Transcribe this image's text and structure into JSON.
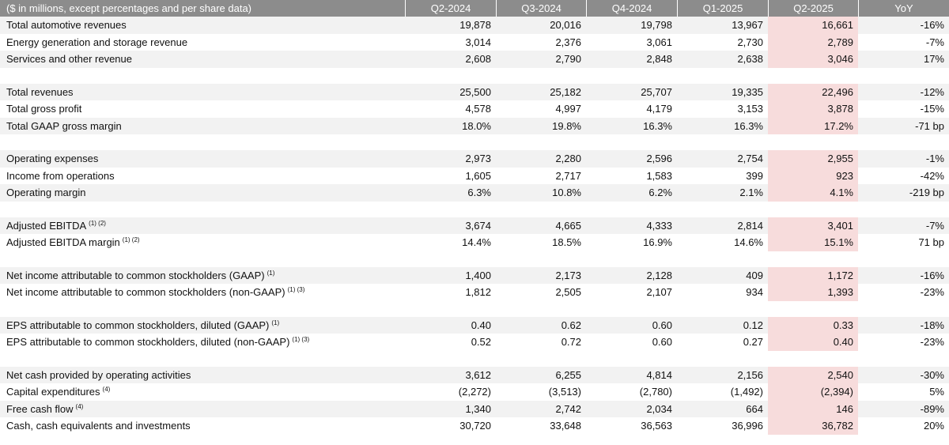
{
  "header": [
    "($ in millions, except percentages and per share data)",
    "Q2-2024",
    "Q3-2024",
    "Q4-2024",
    "Q1-2025",
    "Q2-2025",
    "YoY"
  ],
  "groups": [
    [
      {
        "label": "Total automotive revenues",
        "sup": "",
        "values": [
          "19,878",
          "20,016",
          "19,798",
          "13,967",
          "16,661",
          "-16%"
        ]
      },
      {
        "label": "Energy generation and storage revenue",
        "sup": "",
        "values": [
          "3,014",
          "2,376",
          "3,061",
          "2,730",
          "2,789",
          "-7%"
        ]
      },
      {
        "label": "Services and other revenue",
        "sup": "",
        "values": [
          "2,608",
          "2,790",
          "2,848",
          "2,638",
          "3,046",
          "17%"
        ]
      }
    ],
    [
      {
        "label": "Total revenues",
        "sup": "",
        "values": [
          "25,500",
          "25,182",
          "25,707",
          "19,335",
          "22,496",
          "-12%"
        ]
      },
      {
        "label": "Total gross profit",
        "sup": "",
        "values": [
          "4,578",
          "4,997",
          "4,179",
          "3,153",
          "3,878",
          "-15%"
        ]
      },
      {
        "label": "Total GAAP gross margin",
        "sup": "",
        "values": [
          "18.0%",
          "19.8%",
          "16.3%",
          "16.3%",
          "17.2%",
          "-71 bp"
        ]
      }
    ],
    [
      {
        "label": "Operating expenses",
        "sup": "",
        "values": [
          "2,973",
          "2,280",
          "2,596",
          "2,754",
          "2,955",
          "-1%"
        ]
      },
      {
        "label": "Income from operations",
        "sup": "",
        "values": [
          "1,605",
          "2,717",
          "1,583",
          "399",
          "923",
          "-42%"
        ]
      },
      {
        "label": "Operating margin",
        "sup": "",
        "values": [
          "6.3%",
          "10.8%",
          "6.2%",
          "2.1%",
          "4.1%",
          "-219 bp"
        ]
      }
    ],
    [
      {
        "label": "Adjusted EBITDA",
        "sup": "(1) (2)",
        "values": [
          "3,674",
          "4,665",
          "4,333",
          "2,814",
          "3,401",
          "-7%"
        ]
      },
      {
        "label": "Adjusted EBITDA margin",
        "sup": "(1) (2)",
        "values": [
          "14.4%",
          "18.5%",
          "16.9%",
          "14.6%",
          "15.1%",
          "71 bp"
        ]
      }
    ],
    [
      {
        "label": "Net income attributable to common stockholders (GAAP)",
        "sup": "(1)",
        "values": [
          "1,400",
          "2,173",
          "2,128",
          "409",
          "1,172",
          "-16%"
        ]
      },
      {
        "label": "Net income attributable to common stockholders (non-GAAP)",
        "sup": "(1) (3)",
        "values": [
          "1,812",
          "2,505",
          "2,107",
          "934",
          "1,393",
          "-23%"
        ]
      }
    ],
    [
      {
        "label": "EPS attributable to common stockholders, diluted (GAAP)",
        "sup": "(1)",
        "values": [
          "0.40",
          "0.62",
          "0.60",
          "0.12",
          "0.33",
          "-18%"
        ]
      },
      {
        "label": "EPS attributable to common stockholders, diluted (non-GAAP)",
        "sup": "(1) (3)",
        "values": [
          "0.52",
          "0.72",
          "0.60",
          "0.27",
          "0.40",
          "-23%"
        ]
      }
    ],
    [
      {
        "label": "Net cash provided by operating activities",
        "sup": "",
        "values": [
          "3,612",
          "6,255",
          "4,814",
          "2,156",
          "2,540",
          "-30%"
        ]
      },
      {
        "label": "Capital expenditures",
        "sup": "(4)",
        "values": [
          "(2,272)",
          "(3,513)",
          "(2,780)",
          "(1,492)",
          "(2,394)",
          "5%"
        ]
      },
      {
        "label": "Free cash flow",
        "sup": "(4)",
        "values": [
          "1,340",
          "2,742",
          "2,034",
          "664",
          "146",
          "-89%"
        ]
      },
      {
        "label": "Cash, cash equivalents and investments",
        "sup": "",
        "values": [
          "30,720",
          "33,648",
          "36,563",
          "36,996",
          "36,782",
          "20%"
        ]
      }
    ]
  ],
  "colors": {
    "header_bg": "#8c8c8c",
    "stripe_bg": "#f2f2f2",
    "highlight_bg": "#f7dcdc"
  }
}
